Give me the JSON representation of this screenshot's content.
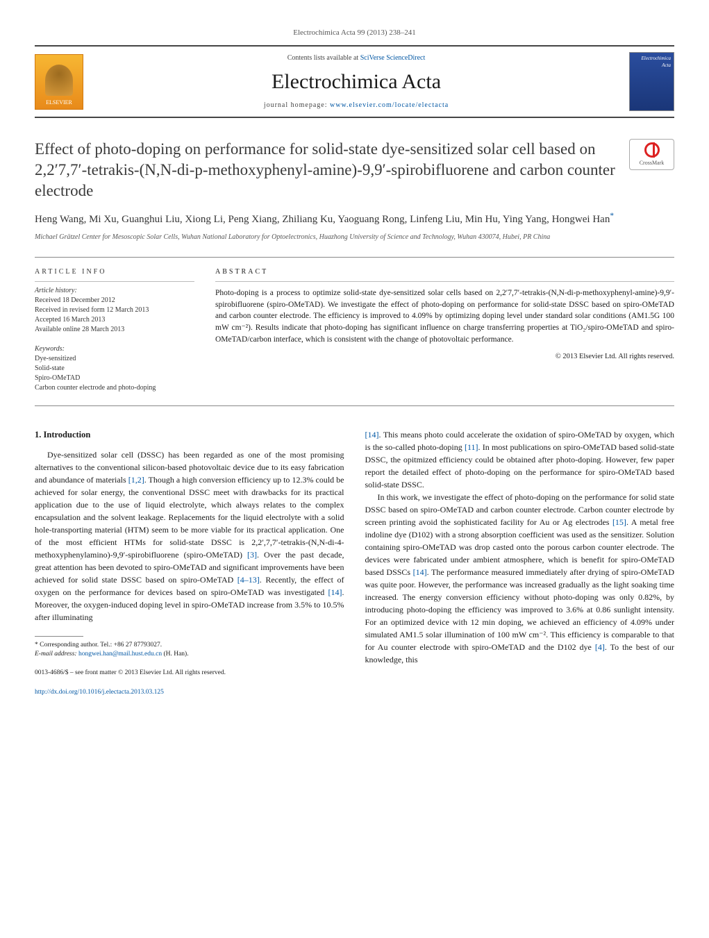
{
  "journal_ref": "Electrochimica Acta 99 (2013) 238–241",
  "header": {
    "contents_prefix": "Contents lists available at ",
    "contents_link": "SciVerse ScienceDirect",
    "journal": "Electrochimica Acta",
    "homepage_prefix": "journal homepage: ",
    "homepage_url": "www.elsevier.com/locate/electacta",
    "publisher_logo": "ELSEVIER",
    "cover_text": "Electrochimica Acta"
  },
  "crossmark": "CrossMark",
  "title": "Effect of photo-doping on performance for solid-state dye-sensitized solar cell based on 2,2′7,7′-tetrakis-(N,N-di-p-methoxyphenyl-amine)-9,9′-spirobifluorene and carbon counter electrode",
  "authors": "Heng Wang, Mi Xu, Guanghui Liu, Xiong Li, Peng Xiang, Zhiliang Ku, Yaoguang Rong, Linfeng Liu, Min Hu, Ying Yang, Hongwei Han",
  "corr_mark": "*",
  "affiliation": "Michael Grätzel Center for Mesoscopic Solar Cells, Wuhan National Laboratory for Optoelectronics, Huazhong University of Science and Technology, Wuhan 430074, Hubei, PR China",
  "info": {
    "heading": "ARTICLE INFO",
    "history_label": "Article history:",
    "received": "Received 18 December 2012",
    "revised": "Received in revised form 12 March 2013",
    "accepted": "Accepted 16 March 2013",
    "online": "Available online 28 March 2013",
    "keywords_label": "Keywords:",
    "keywords": [
      "Dye-sensitized",
      "Solid-state",
      "Spiro-OMeTAD",
      "Carbon counter electrode and photo-doping"
    ]
  },
  "abstract": {
    "heading": "ABSTRACT",
    "text": "Photo-doping is a process to optimize solid-state dye-sensitized solar cells based on 2,2′7,7′-tetrakis-(N,N-di-p-methoxyphenyl-amine)-9,9′-spirobifluorene (spiro-OMeTAD). We investigate the effect of photo-doping on performance for solid-state DSSC based on spiro-OMeTAD and carbon counter electrode. The efficiency is improved to 4.09% by optimizing doping level under standard solar conditions (AM1.5G 100 mW cm⁻²). Results indicate that photo-doping has significant influence on charge transferring properties at TiO₂/spiro-OMeTAD and spiro-OMeTAD/carbon interface, which is consistent with the change of photovoltaic performance.",
    "copyright": "© 2013 Elsevier Ltd. All rights reserved."
  },
  "section1": {
    "heading": "1. Introduction",
    "p1a": "Dye-sensitized solar cell (DSSC) has been regarded as one of the most promising alternatives to the conventional silicon-based photovoltaic device due to its easy fabrication and abundance of materials ",
    "c1": "[1,2]",
    "p1b": ". Though a high conversion efficiency up to 12.3% could be achieved for solar energy, the conventional DSSC meet with drawbacks for its practical application due to the use of liquid electrolyte, which always relates to the complex encapsulation and the solvent leakage. Replacements for the liquid electrolyte with a solid hole-transporting material (HTM) seem to be more viable for its practical application. One of the most efficient HTMs for solid-state DSSC is 2,2′,7,7′-tetrakis-(N,N-di-4-methoxyphenylamino)-9,9′-spirobifluorene (spiro-OMeTAD) ",
    "c2": "[3]",
    "p1c": ". Over the past decade, great attention has been devoted to spiro-OMeTAD and significant improvements have been achieved for solid state DSSC based on spiro-OMeTAD ",
    "c3": "[4–13]",
    "p1d": ". Recently, the effect of oxygen on the performance for devices based on spiro-OMeTAD was investigated ",
    "c4": "[14]",
    "p1e": ". Moreover, the oxygen-induced doping level in spiro-OMeTAD increase from 3.5% to 10.5% after illuminating",
    "p2a_c": "[14]",
    "p2a": ". This means photo could accelerate the oxidation of spiro-OMeTAD by oxygen, which is the so-called photo-doping ",
    "c5": "[11]",
    "p2b": ". In most publications on spiro-OMeTAD based solid-state DSSC, the opitmized efficiency could be obtained after photo-doping. However, few paper report the detailed effect of photo-doping on the performance for spiro-OMeTAD based solid-state DSSC.",
    "p3a": "In this work, we investigate the effect of photo-doping on the performance for solid state DSSC based on spiro-OMeTAD and carbon counter electrode. Carbon counter electrode by screen printing avoid the sophisticated facility for Au or Ag electrodes ",
    "c6": "[15]",
    "p3b": ". A metal free indoline dye (D102) with a strong absorption coefficient was used as the sensitizer. Solution containing spiro-OMeTAD was drop casted onto the porous carbon counter electrode. The devices were fabricated under ambient atmosphere, which is benefit for spiro-OMeTAD based DSSCs ",
    "c7": "[14]",
    "p3c": ". The performance measured immediately after drying of spiro-OMeTAD was quite poor. However, the performance was increased gradually as the light soaking time increased. The energy conversion efficiency without photo-doping was only 0.82%, by introducing photo-doping the efficiency was improved to 3.6% at 0.86 sunlight intensity. For an optimized device with 12 min doping, we achieved an efficiency of 4.09% under simulated AM1.5 solar illumination of 100 mW cm⁻². This efficiency is comparable to that for Au counter electrode with spiro-OMeTAD and the D102 dye ",
    "c8": "[4]",
    "p3d": ". To the best of our knowledge, this"
  },
  "footnote": {
    "corr_label": "* Corresponding author. Tel.: +86 27 87793027.",
    "email_label": "E-mail address: ",
    "email": "hongwei.han@mail.hust.edu.cn",
    "email_name": " (H. Han)."
  },
  "footer": {
    "issn": "0013-4686/$ – see front matter © 2013 Elsevier Ltd. All rights reserved.",
    "doi": "http://dx.doi.org/10.1016/j.electacta.2013.03.125"
  },
  "colors": {
    "link": "#0056a3",
    "text": "#1a1a1a",
    "rule": "#888888",
    "elsevier_bg_top": "#f7b733",
    "elsevier_bg_bot": "#e88a1a",
    "cover_bg": "#2a4d9e"
  }
}
